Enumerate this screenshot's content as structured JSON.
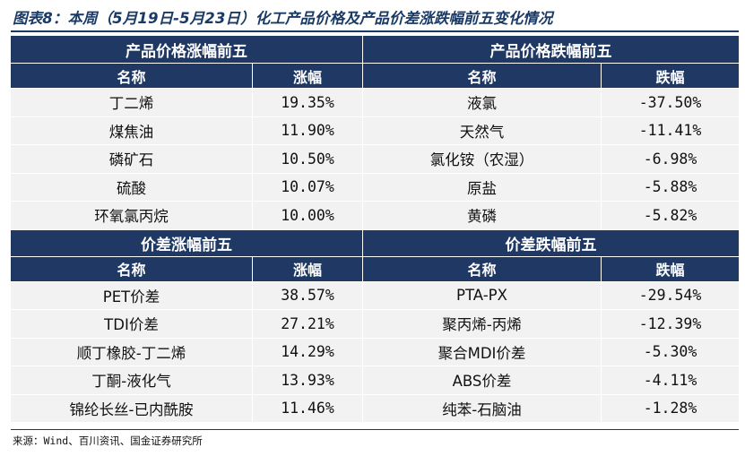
{
  "title": "图表8：本周（5月19日-5月23日）化工产品价格及产品价差涨跌幅前五变化情况",
  "source": "来源：Wind、百川资讯、国金证券研究所",
  "price_section": {
    "rise_title": "产品价格涨幅前五",
    "fall_title": "产品价格跌幅前五",
    "col_name": "名称",
    "col_rise": "涨幅",
    "col_fall": "跌幅",
    "rows": [
      {
        "rise_name": "丁二烯",
        "rise_value": "19.35%",
        "fall_name": "液氯",
        "fall_value": "-37.50%"
      },
      {
        "rise_name": "煤焦油",
        "rise_value": "11.90%",
        "fall_name": "天然气",
        "fall_value": "-11.41%"
      },
      {
        "rise_name": "磷矿石",
        "rise_value": "10.50%",
        "fall_name": "氯化铵（农湿）",
        "fall_value": "-6.98%"
      },
      {
        "rise_name": "硫酸",
        "rise_value": "10.07%",
        "fall_name": "原盐",
        "fall_value": "-5.88%"
      },
      {
        "rise_name": "环氧氯丙烷",
        "rise_value": "10.00%",
        "fall_name": "黄磷",
        "fall_value": "-5.82%"
      }
    ]
  },
  "spread_section": {
    "rise_title": "价差涨幅前五",
    "fall_title": "价差跌幅前五",
    "col_name": "名称",
    "col_rise": "涨幅",
    "col_fall": "跌幅",
    "rows": [
      {
        "rise_name": "PET价差",
        "rise_value": "38.57%",
        "fall_name": "PTA-PX",
        "fall_value": "-29.54%"
      },
      {
        "rise_name": "TDI价差",
        "rise_value": "27.21%",
        "fall_name": "聚丙烯-丙烯",
        "fall_value": "-12.39%"
      },
      {
        "rise_name": "顺丁橡胶-丁二烯",
        "rise_value": "14.29%",
        "fall_name": "聚合MDI价差",
        "fall_value": "-5.30%"
      },
      {
        "rise_name": "丁酮-液化气",
        "rise_value": "13.93%",
        "fall_name": "ABS价差",
        "fall_value": "-4.11%"
      },
      {
        "rise_name": "锦纶长丝-已内酰胺",
        "rise_value": "11.46%",
        "fall_name": "纯苯-石脑油",
        "fall_value": "-1.28%"
      }
    ]
  },
  "colors": {
    "header_bg": "#1f3864",
    "row_bg": "#f2f2f2",
    "title": "#1a3a66"
  }
}
